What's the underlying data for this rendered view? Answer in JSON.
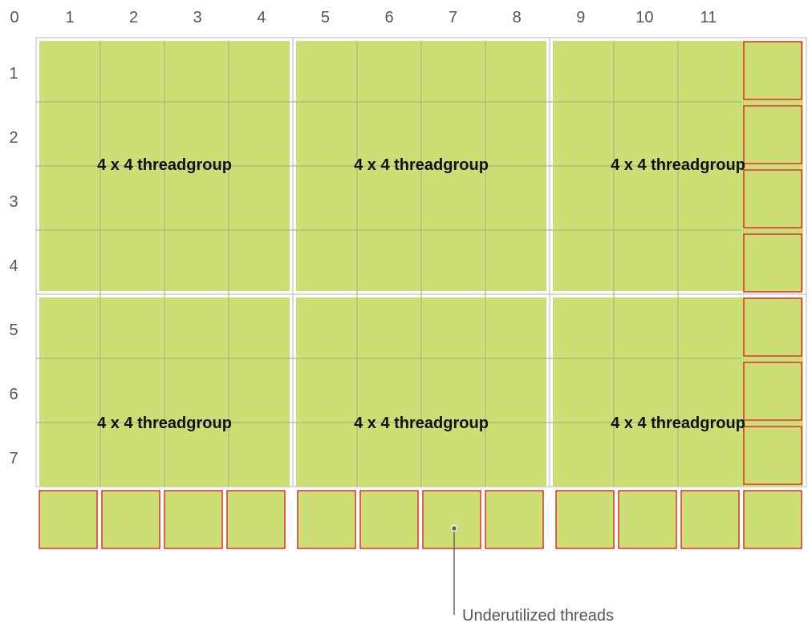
{
  "axes": {
    "x_labels": [
      "0",
      "1",
      "2",
      "3",
      "4",
      "5",
      "6",
      "7",
      "8",
      "9",
      "10",
      "11"
    ],
    "y_labels": [
      "1",
      "2",
      "3",
      "4",
      "5",
      "6",
      "7"
    ]
  },
  "threadgroups": [
    {
      "label": "4 x 4 threadgroup"
    },
    {
      "label": "4 x 4 threadgroup"
    },
    {
      "label": "4 x 4 threadgroup"
    },
    {
      "label": "4 x 4 threadgroup"
    },
    {
      "label": "4 x 4 threadgroup"
    },
    {
      "label": "4 x 4 threadgroup"
    }
  ],
  "callout": {
    "label": "Underutilized threads"
  },
  "colors": {
    "thread_fill": "#cddf74",
    "grid_line": "#a6bb79",
    "group_border": "#d0d0d0",
    "underutilized_border": "#e0302a",
    "axis_text": "#555555",
    "label_text": "#111111",
    "callout_line": "#666666"
  }
}
